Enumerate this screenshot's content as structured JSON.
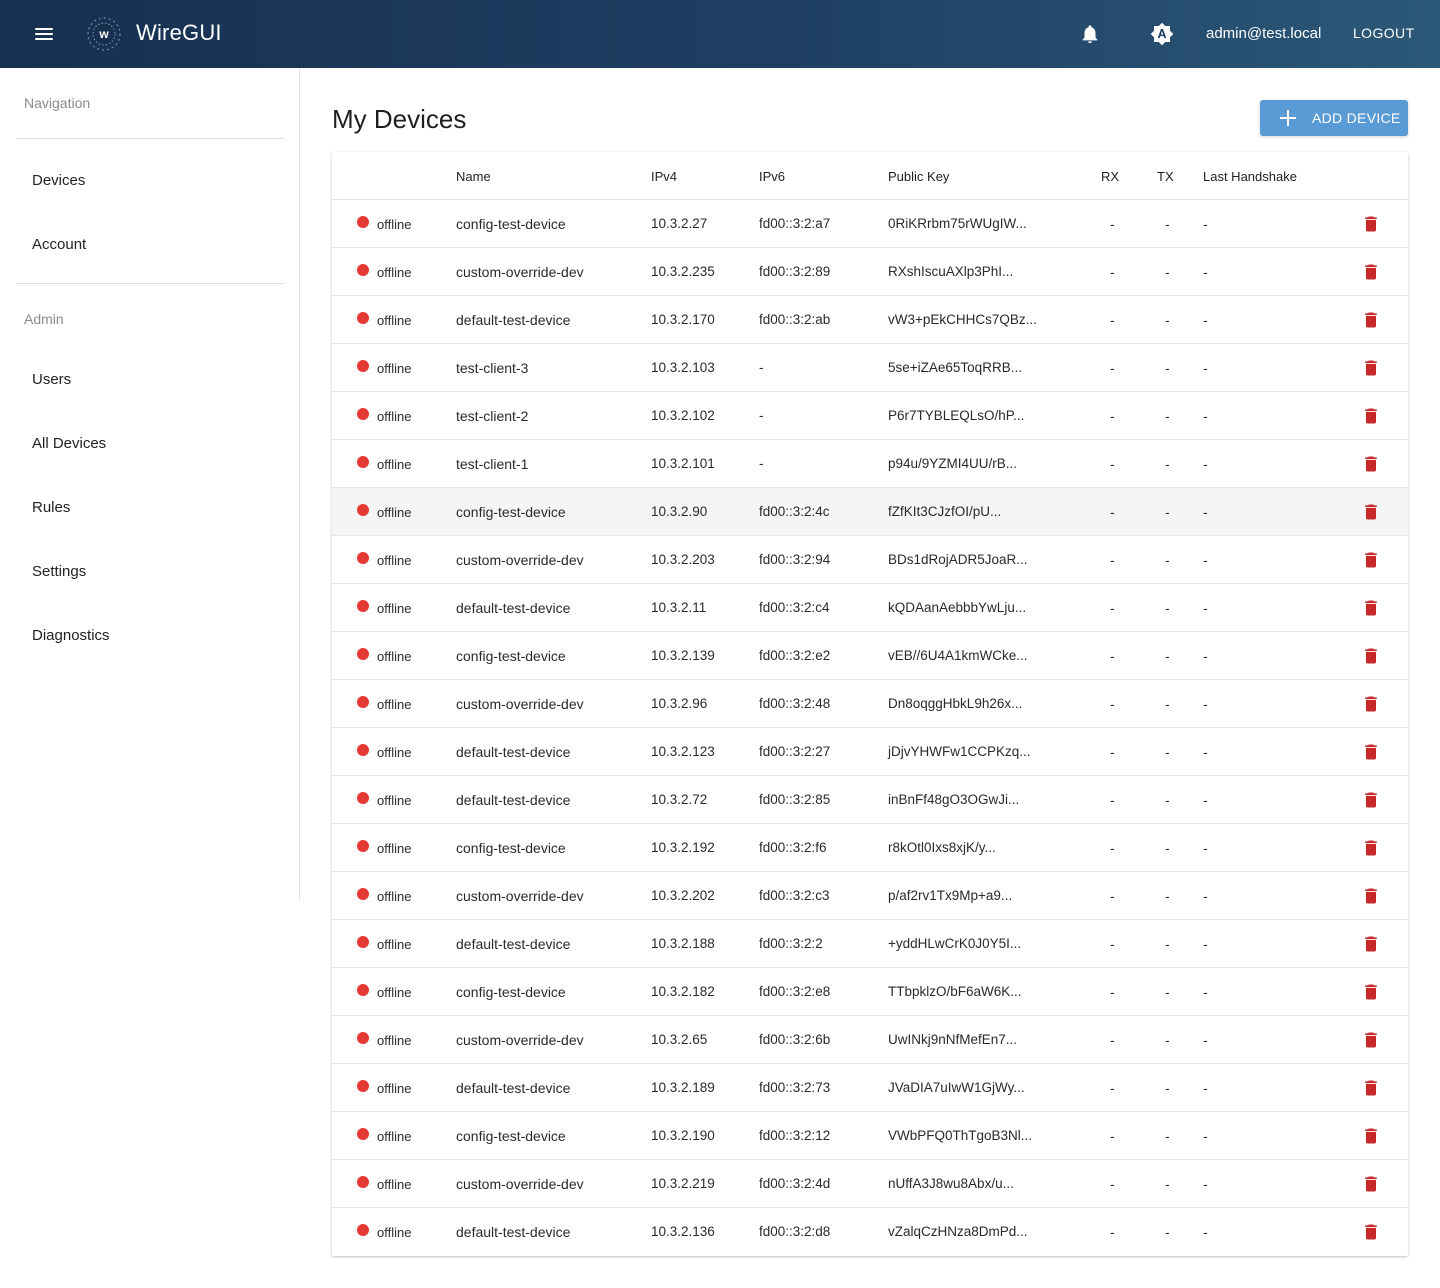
{
  "header": {
    "app_title": "WireGUI",
    "logo_letter": "w",
    "user_email": "admin@test.local",
    "logout_label": "LOGOUT"
  },
  "sidebar": {
    "nav_section": "Navigation",
    "admin_section": "Admin",
    "nav_items": [
      "Devices",
      "Account"
    ],
    "admin_items": [
      "Users",
      "All Devices",
      "Rules",
      "Settings",
      "Diagnostics"
    ]
  },
  "main": {
    "title": "My Devices",
    "add_button_label": "ADD DEVICE"
  },
  "table": {
    "columns": {
      "name": "Name",
      "ipv4": "IPv4",
      "ipv6": "IPv6",
      "public_key": "Public Key",
      "rx": "RX",
      "tx": "TX",
      "last_handshake": "Last Handshake"
    },
    "rows": [
      {
        "status": "offline",
        "name": "config-test-device",
        "ipv4": "10.3.2.27",
        "ipv6": "fd00::3:2:a7",
        "key": "0RiKRrbm75rWUgIW...",
        "rx": "-",
        "tx": "-",
        "handshake": "-"
      },
      {
        "status": "offline",
        "name": "custom-override-dev",
        "ipv4": "10.3.2.235",
        "ipv6": "fd00::3:2:89",
        "key": "RXshIscuAXlp3PhI...",
        "rx": "-",
        "tx": "-",
        "handshake": "-"
      },
      {
        "status": "offline",
        "name": "default-test-device",
        "ipv4": "10.3.2.170",
        "ipv6": "fd00::3:2:ab",
        "key": "vW3+pEkCHHCs7QBz...",
        "rx": "-",
        "tx": "-",
        "handshake": "-"
      },
      {
        "status": "offline",
        "name": "test-client-3",
        "ipv4": "10.3.2.103",
        "ipv6": "-",
        "key": "5se+iZAe65ToqRRB...",
        "rx": "-",
        "tx": "-",
        "handshake": "-"
      },
      {
        "status": "offline",
        "name": "test-client-2",
        "ipv4": "10.3.2.102",
        "ipv6": "-",
        "key": "P6r7TYBLEQLsO/hP...",
        "rx": "-",
        "tx": "-",
        "handshake": "-"
      },
      {
        "status": "offline",
        "name": "test-client-1",
        "ipv4": "10.3.2.101",
        "ipv6": "-",
        "key": "p94u/9YZMI4UU/rB...",
        "rx": "-",
        "tx": "-",
        "handshake": "-"
      },
      {
        "status": "offline",
        "name": "config-test-device",
        "ipv4": "10.3.2.90",
        "ipv6": "fd00::3:2:4c",
        "key": "fZfKIt3CJzfOI/pU...",
        "rx": "-",
        "tx": "-",
        "handshake": "-"
      },
      {
        "status": "offline",
        "name": "custom-override-dev",
        "ipv4": "10.3.2.203",
        "ipv6": "fd00::3:2:94",
        "key": "BDs1dRojADR5JoaR...",
        "rx": "-",
        "tx": "-",
        "handshake": "-"
      },
      {
        "status": "offline",
        "name": "default-test-device",
        "ipv4": "10.3.2.11",
        "ipv6": "fd00::3:2:c4",
        "key": "kQDAanAebbbYwLju...",
        "rx": "-",
        "tx": "-",
        "handshake": "-"
      },
      {
        "status": "offline",
        "name": "config-test-device",
        "ipv4": "10.3.2.139",
        "ipv6": "fd00::3:2:e2",
        "key": "vEB//6U4A1kmWCke...",
        "rx": "-",
        "tx": "-",
        "handshake": "-"
      },
      {
        "status": "offline",
        "name": "custom-override-dev",
        "ipv4": "10.3.2.96",
        "ipv6": "fd00::3:2:48",
        "key": "Dn8oqggHbkL9h26x...",
        "rx": "-",
        "tx": "-",
        "handshake": "-"
      },
      {
        "status": "offline",
        "name": "default-test-device",
        "ipv4": "10.3.2.123",
        "ipv6": "fd00::3:2:27",
        "key": "jDjvYHWFw1CCPKzq...",
        "rx": "-",
        "tx": "-",
        "handshake": "-"
      },
      {
        "status": "offline",
        "name": "default-test-device",
        "ipv4": "10.3.2.72",
        "ipv6": "fd00::3:2:85",
        "key": "inBnFf48gO3OGwJi...",
        "rx": "-",
        "tx": "-",
        "handshake": "-"
      },
      {
        "status": "offline",
        "name": "config-test-device",
        "ipv4": "10.3.2.192",
        "ipv6": "fd00::3:2:f6",
        "key": "r8kOtl0Ixs8xjK/y...",
        "rx": "-",
        "tx": "-",
        "handshake": "-"
      },
      {
        "status": "offline",
        "name": "custom-override-dev",
        "ipv4": "10.3.2.202",
        "ipv6": "fd00::3:2:c3",
        "key": "p/af2rv1Tx9Mp+a9...",
        "rx": "-",
        "tx": "-",
        "handshake": "-"
      },
      {
        "status": "offline",
        "name": "default-test-device",
        "ipv4": "10.3.2.188",
        "ipv6": "fd00::3:2:2",
        "key": "+yddHLwCrK0J0Y5I...",
        "rx": "-",
        "tx": "-",
        "handshake": "-"
      },
      {
        "status": "offline",
        "name": "config-test-device",
        "ipv4": "10.3.2.182",
        "ipv6": "fd00::3:2:e8",
        "key": "TTbpklzO/bF6aW6K...",
        "rx": "-",
        "tx": "-",
        "handshake": "-"
      },
      {
        "status": "offline",
        "name": "custom-override-dev",
        "ipv4": "10.3.2.65",
        "ipv6": "fd00::3:2:6b",
        "key": "UwINkj9nNfMefEn7...",
        "rx": "-",
        "tx": "-",
        "handshake": "-"
      },
      {
        "status": "offline",
        "name": "default-test-device",
        "ipv4": "10.3.2.189",
        "ipv6": "fd00::3:2:73",
        "key": "JVaDIA7uIwW1GjWy...",
        "rx": "-",
        "tx": "-",
        "handshake": "-"
      },
      {
        "status": "offline",
        "name": "config-test-device",
        "ipv4": "10.3.2.190",
        "ipv6": "fd00::3:2:12",
        "key": "VWbPFQ0ThTgoB3Nl...",
        "rx": "-",
        "tx": "-",
        "handshake": "-"
      },
      {
        "status": "offline",
        "name": "custom-override-dev",
        "ipv4": "10.3.2.219",
        "ipv6": "fd00::3:2:4d",
        "key": "nUffA3J8wu8Abx/u...",
        "rx": "-",
        "tx": "-",
        "handshake": "-"
      },
      {
        "status": "offline",
        "name": "default-test-device",
        "ipv4": "10.3.2.136",
        "ipv6": "fd00::3:2:d8",
        "key": "vZalqCzHNza8DmPd...",
        "rx": "-",
        "tx": "-",
        "handshake": "-"
      }
    ]
  },
  "icons": {
    "menu": "menu-icon",
    "notifications": "bell-icon",
    "theme": "brightness-auto-icon",
    "add": "plus-icon",
    "delete": "trash-icon",
    "status": "status-dot-icon"
  },
  "colors": {
    "header_start": "#17304f",
    "header_end": "#2c5877",
    "accent": "#5b9bd5",
    "offline": "#e53935",
    "delete": "#c62828"
  }
}
